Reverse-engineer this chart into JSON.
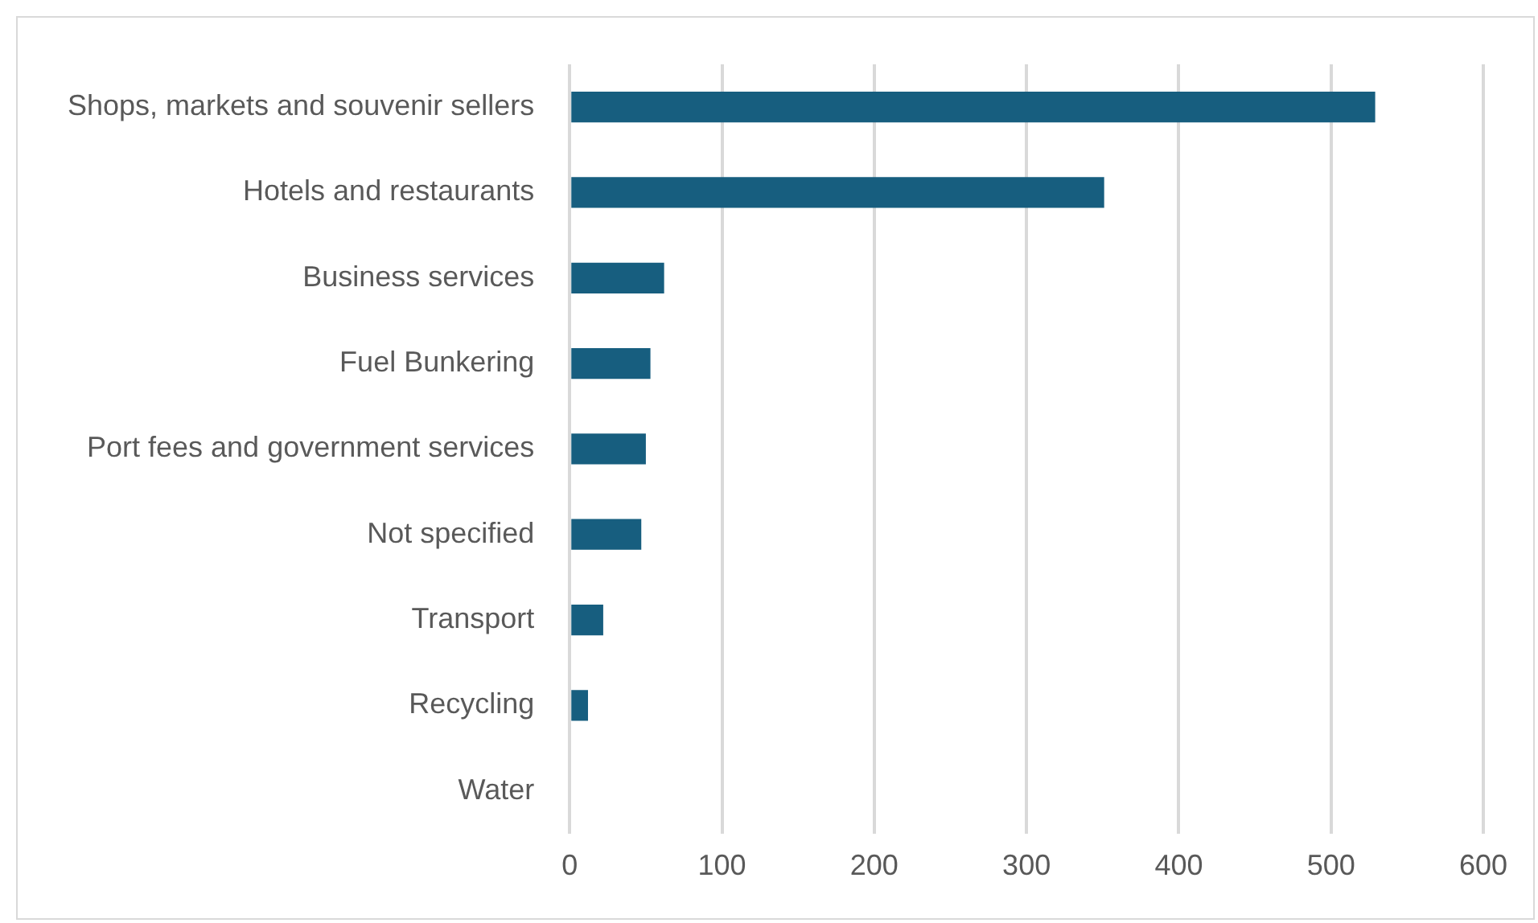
{
  "chart_data": {
    "type": "bar",
    "orientation": "horizontal",
    "categories": [
      "Shops, markets and souvenir sellers",
      "Hotels and restaurants",
      "Business services",
      "Fuel Bunkering",
      "Port fees and government services",
      "Not specified",
      "Transport",
      "Recycling",
      "Water"
    ],
    "values": [
      529,
      351,
      62,
      53,
      50,
      47,
      22,
      12,
      0
    ],
    "color": "#175e7f",
    "xlim": [
      0,
      600
    ],
    "xticks": [
      0,
      100,
      200,
      300,
      400,
      500,
      600
    ],
    "grid": "x",
    "legend": false
  }
}
